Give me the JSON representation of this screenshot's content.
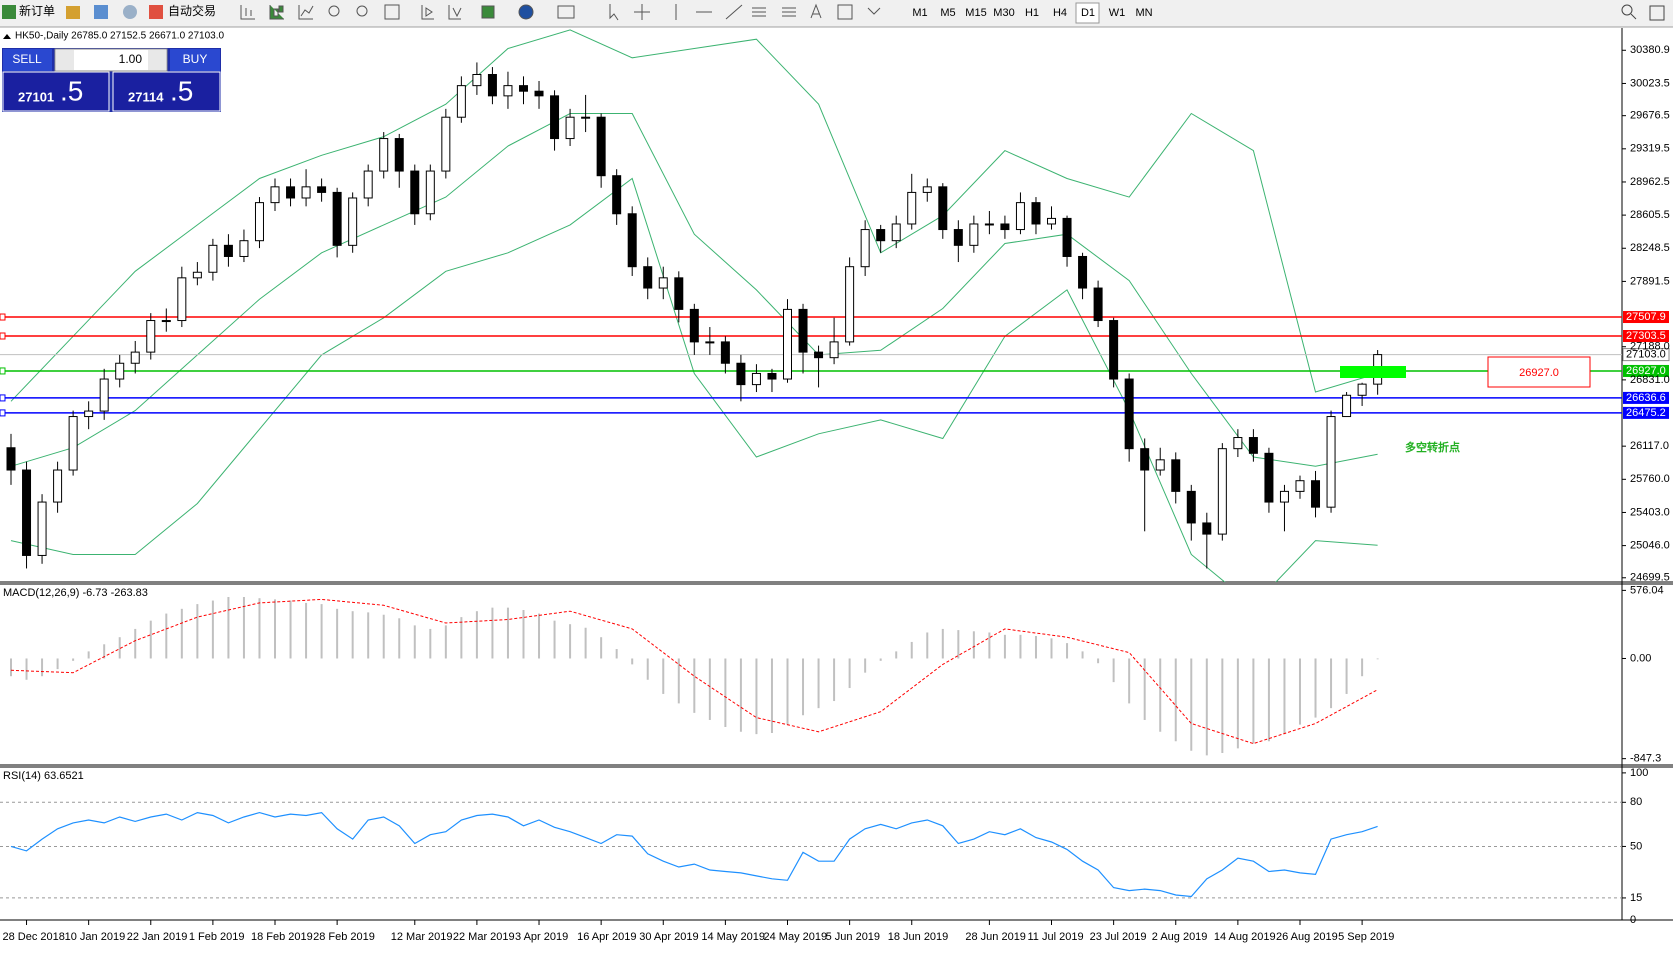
{
  "toolbar": {
    "new_order": "新订单",
    "auto_trading": "自动交易",
    "periods": [
      "M1",
      "M5",
      "M15",
      "M30",
      "H1",
      "H4",
      "D1",
      "W1",
      "MN"
    ],
    "active_period": "D1"
  },
  "trade_panel": {
    "sell": "SELL",
    "buy": "BUY",
    "lot": "1.00",
    "sell_price": "27101",
    "sell_pips": ".5",
    "buy_price": "27114",
    "buy_pips": ".5"
  },
  "chart_data": [
    {
      "type": "candlestick",
      "title": "HK50-,Daily  26785.0 27152.5 26671.0 27103.0",
      "categories": [
        null,
        "28 Dec 2018",
        null,
        null,
        null,
        "10 Jan 2019",
        null,
        null,
        null,
        "22 Jan 2019",
        null,
        null,
        null,
        "1 Feb 2019",
        null,
        null,
        null,
        "18 Feb 2019",
        null,
        null,
        null,
        "28 Feb 2019",
        null,
        null,
        null,
        null,
        "12 Mar 2019",
        null,
        null,
        null,
        "22 Mar 2019",
        null,
        null,
        null,
        "3 Apr 2019",
        null,
        null,
        null,
        "16 Apr 2019",
        null,
        null,
        null,
        "30 Apr 2019",
        null,
        null,
        null,
        "14 May 2019",
        null,
        null,
        null,
        "24 May 2019",
        null,
        null,
        null,
        "5 Jun 2019",
        null,
        null,
        null,
        "18 Jun 2019",
        null,
        null,
        null,
        null,
        "28 Jun 2019",
        null,
        null,
        null,
        "11 Jul 2019",
        null,
        null,
        null,
        "23 Jul 2019",
        null,
        null,
        null,
        "2 Aug 2019",
        null,
        null,
        null,
        "14 Aug 2019",
        null,
        null,
        null,
        "26 Aug 2019",
        null,
        null,
        null,
        "5 Sep 2019",
        null
      ],
      "open": [
        26100,
        25860,
        24940,
        25515,
        25860,
        26436,
        26495,
        26840,
        27010,
        27130,
        27470,
        27470,
        27930,
        27990,
        28280,
        28160,
        28330,
        28740,
        28910,
        28790,
        28910,
        28850,
        28280,
        28790,
        29080,
        29430,
        29080,
        28620,
        29080,
        29660,
        30000,
        30120,
        29890,
        30000,
        29940,
        29890,
        29430,
        29660,
        29660,
        29030,
        28620,
        28050,
        27820,
        27930,
        27590,
        27240,
        27240,
        27010,
        26780,
        26900,
        26840,
        27590,
        27130,
        27070,
        27240,
        28050,
        28450,
        28330,
        28510,
        28850,
        28910,
        28450,
        28280,
        28510,
        28510,
        28450,
        28740,
        28510,
        28570,
        28160,
        27820,
        27470,
        26840,
        26090,
        25860,
        25970,
        25630,
        25290,
        25170,
        26090,
        26210,
        26040,
        25515,
        25630,
        25745,
        25460,
        26436,
        26665,
        26785
      ],
      "high": [
        26250,
        25950,
        25600,
        25950,
        26500,
        26600,
        26950,
        27100,
        27250,
        27550,
        27600,
        28050,
        28100,
        28350,
        28400,
        28450,
        28800,
        29000,
        29000,
        29100,
        29000,
        28900,
        28850,
        29150,
        29500,
        29480,
        29150,
        29150,
        29750,
        30100,
        30250,
        30200,
        30150,
        30100,
        30050,
        29950,
        29750,
        29900,
        29700,
        29100,
        28700,
        28150,
        28050,
        28000,
        27650,
        27400,
        27300,
        27100,
        27000,
        26950,
        27700,
        27650,
        27200,
        27500,
        28150,
        28550,
        28500,
        28600,
        29050,
        29000,
        28950,
        28550,
        28600,
        28650,
        28600,
        28850,
        28800,
        28700,
        28600,
        28200,
        27900,
        27500,
        26900,
        26200,
        26100,
        26050,
        25700,
        25400,
        26150,
        26300,
        26300,
        26100,
        25700,
        25800,
        25850,
        26500,
        26700,
        26800,
        27152.5
      ],
      "low": [
        25700,
        24800,
        24850,
        25400,
        25800,
        26300,
        26400,
        26750,
        26900,
        27050,
        27350,
        27400,
        27850,
        27900,
        28050,
        28100,
        28250,
        28650,
        28700,
        28700,
        28750,
        28150,
        28200,
        28700,
        29000,
        28900,
        28500,
        28550,
        29000,
        29600,
        29900,
        29800,
        29750,
        29800,
        29750,
        29300,
        29350,
        29500,
        28900,
        28500,
        27950,
        27700,
        27700,
        27450,
        27100,
        27100,
        26900,
        26600,
        26700,
        26700,
        26800,
        26900,
        26750,
        27000,
        27200,
        27950,
        28200,
        28250,
        28450,
        28750,
        28350,
        28100,
        28200,
        28400,
        28350,
        28400,
        28400,
        28450,
        28050,
        27700,
        27400,
        26750,
        25950,
        25200,
        25800,
        25500,
        25100,
        24800,
        25100,
        26000,
        25950,
        25400,
        25200,
        25550,
        25350,
        25400,
        26450,
        26550,
        26671
      ],
      "close": [
        25860,
        24940,
        25515,
        25860,
        26436,
        26495,
        26840,
        27010,
        27130,
        27470,
        27470,
        27930,
        27990,
        28280,
        28160,
        28330,
        28740,
        28910,
        28790,
        28910,
        28850,
        28280,
        28790,
        29080,
        29430,
        29080,
        28620,
        29080,
        29660,
        30000,
        30120,
        29890,
        30000,
        29940,
        29890,
        29430,
        29660,
        29660,
        29030,
        28620,
        28050,
        27820,
        27930,
        27590,
        27240,
        27240,
        27010,
        26780,
        26900,
        26840,
        27590,
        27130,
        27070,
        27240,
        28050,
        28450,
        28330,
        28510,
        28850,
        28910,
        28450,
        28280,
        28510,
        28510,
        28450,
        28740,
        28510,
        28570,
        28160,
        27820,
        27470,
        26840,
        26090,
        25860,
        25970,
        25630,
        25290,
        25170,
        26090,
        26210,
        26040,
        25515,
        25630,
        25745,
        25460,
        26436,
        26665,
        26785,
        27103
      ],
      "series": [
        {
          "color": "#3cb371",
          "x": [
            0,
            4,
            8,
            12,
            16,
            20,
            24,
            28,
            32,
            36,
            40,
            44,
            48,
            52,
            56,
            60,
            64,
            68,
            72,
            76,
            80,
            84,
            88
          ],
          "values": [
            26600,
            27300,
            28000,
            28500,
            29000,
            29250,
            29450,
            29800,
            30400,
            30600,
            30300,
            30400,
            30500,
            29800,
            28200,
            28600,
            29300,
            29000,
            28800,
            29700,
            29300,
            26700,
            26900
          ]
        },
        {
          "color": "#3cb371",
          "x": [
            0,
            4,
            8,
            12,
            16,
            20,
            24,
            28,
            32,
            36,
            40,
            44,
            48,
            52,
            56,
            60,
            64,
            68,
            72,
            76,
            80,
            84,
            88
          ],
          "values": [
            25900,
            26100,
            26500,
            27100,
            27700,
            28200,
            28500,
            28800,
            29350,
            29700,
            29700,
            28400,
            27800,
            27100,
            27150,
            27600,
            28300,
            28400,
            27900,
            26900,
            26000,
            25900,
            26030
          ]
        },
        {
          "color": "#3cb371",
          "x": [
            0,
            4,
            8,
            12,
            16,
            20,
            24,
            28,
            32,
            36,
            40,
            44,
            48,
            52,
            56,
            60,
            64,
            68,
            72,
            76,
            80,
            84,
            88
          ],
          "values": [
            25100,
            24950,
            24950,
            25500,
            26300,
            27100,
            27500,
            28000,
            28200,
            28500,
            29000,
            26900,
            26000,
            26250,
            26400,
            26200,
            27300,
            27800,
            26500,
            24950,
            24400,
            25100,
            25050
          ]
        }
      ],
      "levels": [
        {
          "value": 27507.9,
          "color": "#ff0000"
        },
        {
          "value": 27303.5,
          "color": "#ff0000"
        },
        {
          "value": 26927,
          "label": "26927.0",
          "color": "#00c000"
        },
        {
          "value": 26636.6,
          "color": "#0000ff"
        },
        {
          "value": 26475.2,
          "color": "#0000ff"
        }
      ],
      "last": {
        "value": 27103,
        "label": "27103.0"
      },
      "ylim": [
        24654,
        30610
      ],
      "yticks": [
        30380.9,
        30023.5,
        29676.5,
        29319.5,
        28962.5,
        28605.5,
        28248.5,
        27891.5,
        {
          "value": 27188,
          "label": "27188.0"
        },
        {
          "value": 26831,
          "label": "26831.0"
        },
        {
          "value": 26117,
          "label": "26117.0"
        },
        {
          "value": 25760,
          "label": "25760.0"
        },
        {
          "value": 25403,
          "label": "25403.0"
        },
        {
          "value": 25046,
          "label": "25046.0"
        },
        24699.5
      ],
      "annotations": [
        {
          "text": "26927.0",
          "color": "#ff0000"
        },
        {
          "text": "多空转折点",
          "color": "#22b022"
        }
      ]
    },
    {
      "type": "bar",
      "title": "MACD(12,26,9) -6.73 -263.83",
      "color": "#c0c0c0",
      "values": [
        -150,
        -180,
        -150,
        -90,
        -20,
        60,
        120,
        180,
        250,
        320,
        380,
        420,
        460,
        490,
        520,
        520,
        510,
        500,
        490,
        470,
        460,
        420,
        400,
        390,
        370,
        340,
        280,
        250,
        280,
        350,
        400,
        430,
        430,
        410,
        380,
        320,
        290,
        260,
        180,
        80,
        -50,
        -180,
        -300,
        -380,
        -460,
        -520,
        -580,
        -620,
        -640,
        -630,
        -560,
        -480,
        -420,
        -360,
        -250,
        -120,
        -20,
        60,
        140,
        220,
        250,
        240,
        230,
        220,
        200,
        200,
        190,
        170,
        130,
        60,
        -40,
        -200,
        -380,
        -520,
        -620,
        -700,
        -780,
        -820,
        -800,
        -760,
        -720,
        -700,
        -640,
        -560,
        -500,
        -420,
        -300,
        -150,
        -6.73
      ],
      "series": [
        {
          "color": "#ff0000",
          "x": [
            0,
            4,
            8,
            12,
            16,
            20,
            24,
            28,
            32,
            36,
            40,
            44,
            48,
            52,
            56,
            60,
            64,
            68,
            72,
            76,
            80,
            84,
            88
          ],
          "values": [
            -100,
            -120,
            150,
            350,
            470,
            500,
            450,
            300,
            330,
            400,
            250,
            -150,
            -500,
            -620,
            -450,
            -50,
            250,
            180,
            50,
            -550,
            -720,
            -550,
            -263.83
          ]
        }
      ],
      "ylim": [
        -901,
        630
      ],
      "yticks": [
        576.04,
        {
          "value": 0,
          "label": "0.00"
        },
        -847.3
      ]
    },
    {
      "type": "line",
      "title": "RSI(14) 63.6521",
      "color": "#1e90ff",
      "values": [
        50,
        47,
        55,
        62,
        66,
        68,
        66,
        70,
        67,
        70,
        72,
        68,
        73,
        71,
        66,
        70,
        73,
        70,
        72,
        71,
        73,
        62,
        55,
        68,
        70,
        64,
        52,
        58,
        60,
        68,
        71,
        72,
        70,
        64,
        68,
        63,
        60,
        56,
        52,
        58,
        57,
        45,
        40,
        36,
        38,
        34,
        33,
        32,
        30,
        28,
        27,
        46,
        40,
        40,
        55,
        62,
        65,
        62,
        66,
        68,
        64,
        52,
        55,
        60,
        58,
        62,
        56,
        53,
        48,
        40,
        34,
        22,
        20,
        21,
        20,
        17,
        16,
        28,
        34,
        42,
        40,
        33,
        34,
        32,
        31,
        55,
        58,
        60,
        63.6521
      ],
      "levels": [
        80,
        50,
        15
      ],
      "ylim": [
        0,
        104
      ],
      "yticks": [
        100,
        80,
        50,
        15,
        0
      ]
    }
  ]
}
